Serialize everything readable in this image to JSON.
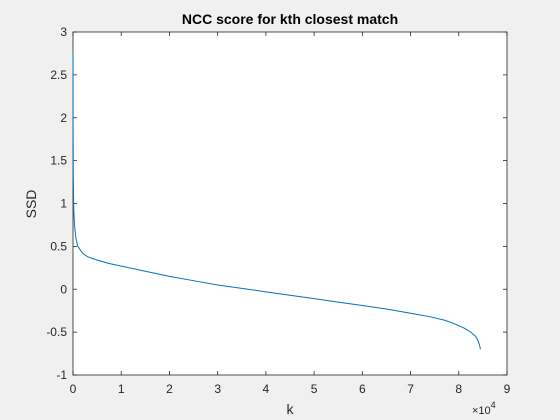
{
  "chart_data": {
    "type": "line",
    "title": "NCC score for kth closest match",
    "xlabel": "k",
    "ylabel": "SSD",
    "x_exponent_label": "×10",
    "x_exponent_power": "4",
    "xlim": [
      0,
      90000
    ],
    "ylim": [
      -1,
      3
    ],
    "x_ticks": [
      0,
      10000,
      20000,
      30000,
      40000,
      50000,
      60000,
      70000,
      80000,
      90000
    ],
    "x_tick_labels": [
      "0",
      "1",
      "2",
      "3",
      "4",
      "5",
      "6",
      "7",
      "8",
      "9"
    ],
    "y_ticks": [
      -1,
      -0.5,
      0,
      0.5,
      1,
      1.5,
      2,
      2.5,
      3
    ],
    "y_tick_labels": [
      "-1",
      "-0.5",
      "0",
      "0.5",
      "1",
      "1.5",
      "2",
      "2.5",
      "3"
    ],
    "grid": false,
    "series": [
      {
        "color": "#0072bd",
        "x": [
          0,
          20,
          60,
          150,
          300,
          600,
          1000,
          2000,
          3000,
          5000,
          7500,
          10000,
          15000,
          20000,
          25000,
          30000,
          35000,
          40000,
          45000,
          50000,
          55000,
          60000,
          65000,
          70000,
          74000,
          77000,
          79000,
          81000,
          82500,
          83500,
          84000,
          84300,
          84500
        ],
        "y": [
          2.75,
          1.9,
          1.3,
          0.95,
          0.75,
          0.6,
          0.5,
          0.42,
          0.38,
          0.34,
          0.3,
          0.27,
          0.21,
          0.15,
          0.1,
          0.05,
          0.01,
          -0.03,
          -0.07,
          -0.11,
          -0.15,
          -0.19,
          -0.23,
          -0.28,
          -0.32,
          -0.36,
          -0.4,
          -0.45,
          -0.5,
          -0.55,
          -0.6,
          -0.65,
          -0.7
        ]
      }
    ]
  }
}
